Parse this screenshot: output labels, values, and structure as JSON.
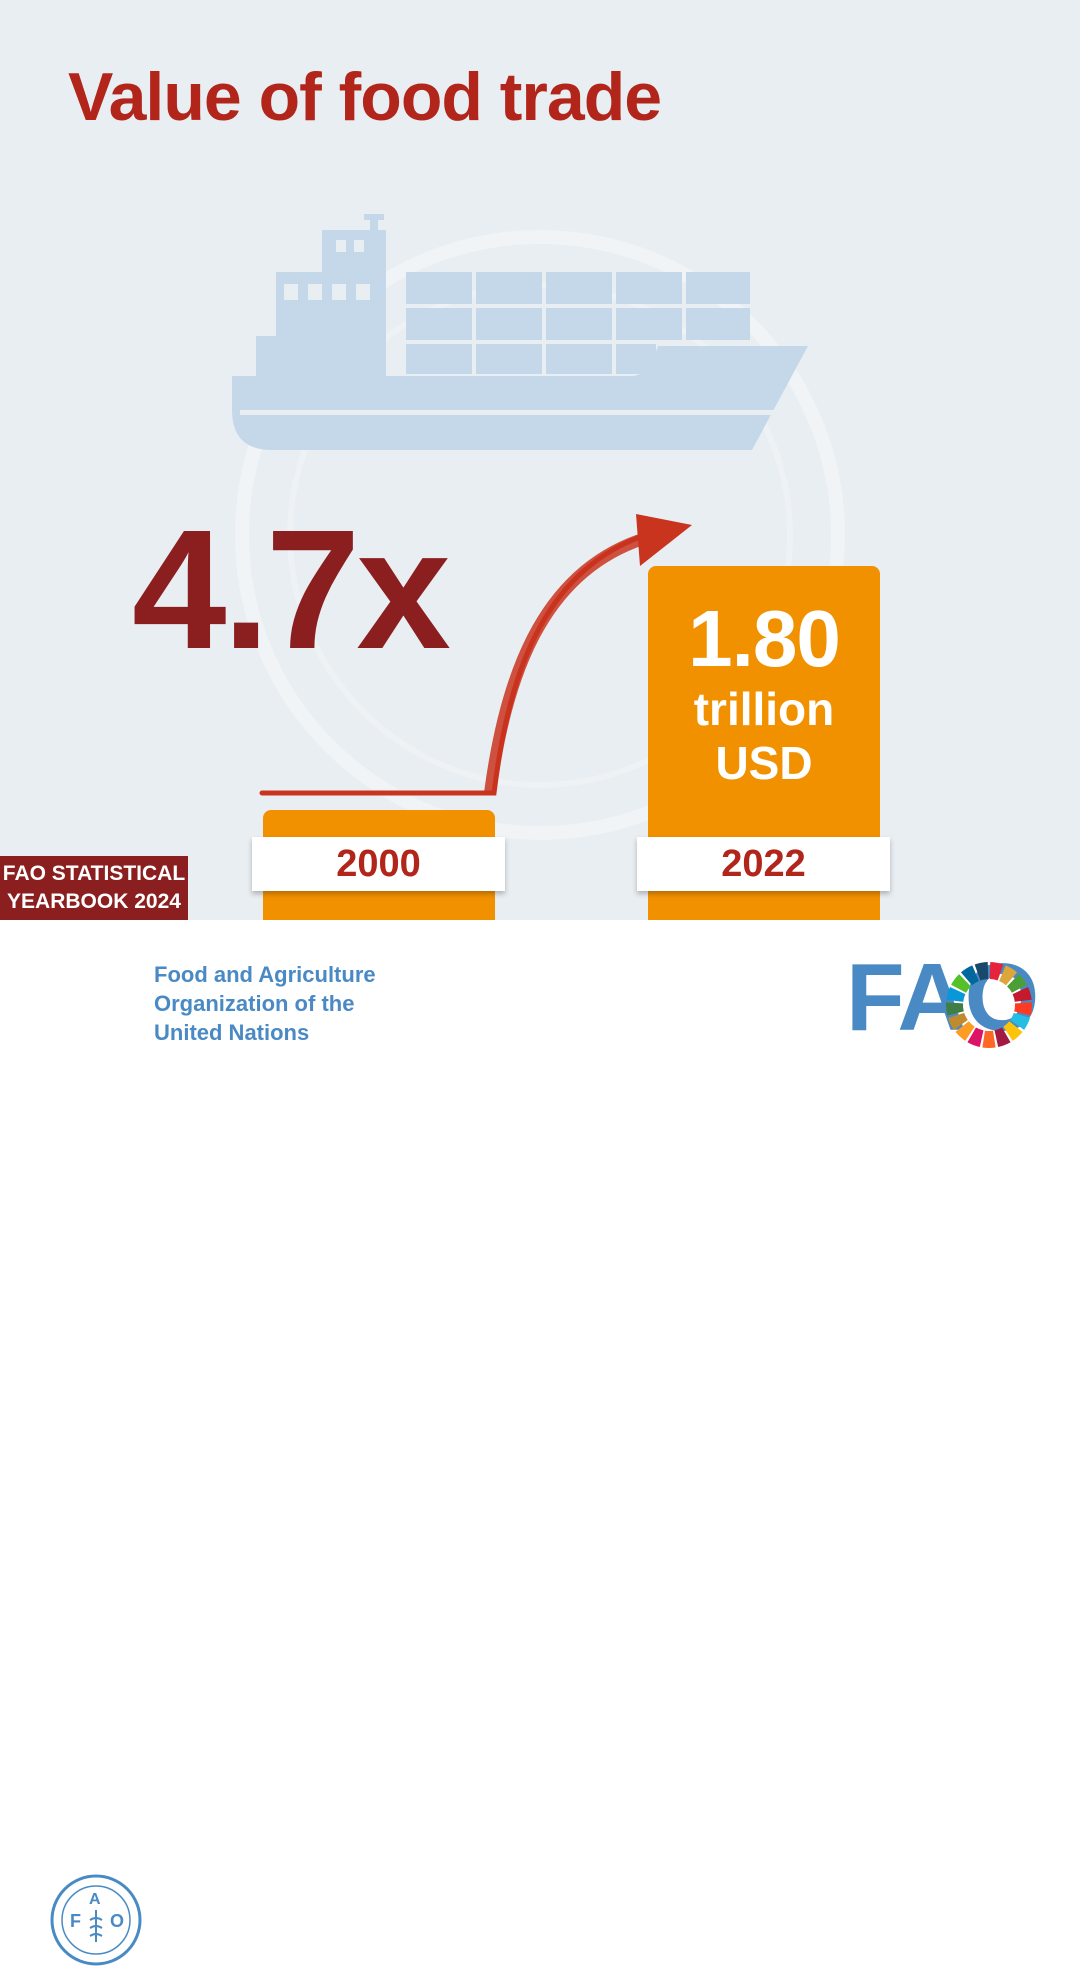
{
  "title": "Value of food trade",
  "multiplier": "4.7x",
  "badge": {
    "line1": "FAO STATISTICAL",
    "line2": "YEARBOOK 2024"
  },
  "org": {
    "line1": "Food and Agriculture",
    "line2": "Organization of the",
    "line3": "United Nations",
    "short": "FAO"
  },
  "colors": {
    "title": "#b2251b",
    "multiplier": "#8b1f1f",
    "bar": "#f29100",
    "arrow": "#c9341f",
    "org": "#4a8ac4",
    "background": "#e9eef2"
  },
  "chart_data": {
    "type": "bar",
    "title": "Value of food trade",
    "categories": [
      "2000",
      "2022"
    ],
    "values": [
      0.38,
      1.8
    ],
    "unit": "trillion USD",
    "growth": "4.7x",
    "data_labels": {
      "2022": {
        "value": "1.80",
        "unit_line1": "trillion",
        "unit_line2": "USD"
      }
    }
  },
  "icons": [
    "cargo-ship-icon",
    "growth-arrow-icon",
    "fao-emblem-icon",
    "sdg-wheel-icon"
  ]
}
